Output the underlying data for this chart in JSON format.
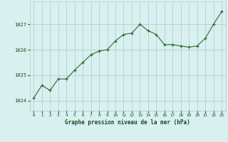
{
  "x": [
    0,
    1,
    2,
    3,
    4,
    5,
    6,
    7,
    8,
    9,
    10,
    11,
    12,
    13,
    14,
    15,
    16,
    17,
    18,
    19,
    20,
    21,
    22,
    23
  ],
  "y": [
    1024.1,
    1024.6,
    1024.4,
    1024.85,
    1024.85,
    1025.2,
    1025.5,
    1025.8,
    1025.95,
    1026.0,
    1026.35,
    1026.6,
    1026.65,
    1027.0,
    1026.75,
    1026.6,
    1026.2,
    1026.2,
    1026.15,
    1026.1,
    1026.15,
    1026.45,
    1027.0,
    1027.5
  ],
  "line_color": "#2d6a2d",
  "marker_color": "#2d6a2d",
  "bg_color": "#d8f0f0",
  "grid_color": "#b0c8c8",
  "xlabel": "Graphe pression niveau de la mer (hPa)",
  "xlabel_color": "#1a4a1a",
  "tick_color": "#1a4a1a",
  "ytick_labels": [
    "1024",
    "1025",
    "1026",
    "1027"
  ],
  "ytick_values": [
    1024,
    1025,
    1026,
    1027
  ],
  "ylim": [
    1023.6,
    1027.9
  ],
  "xlim": [
    -0.5,
    23.5
  ],
  "xtick_labels": [
    "0",
    "1",
    "2",
    "3",
    "4",
    "5",
    "6",
    "7",
    "8",
    "9",
    "10",
    "11",
    "12",
    "13",
    "14",
    "15",
    "16",
    "17",
    "18",
    "19",
    "20",
    "21",
    "22",
    "23"
  ]
}
